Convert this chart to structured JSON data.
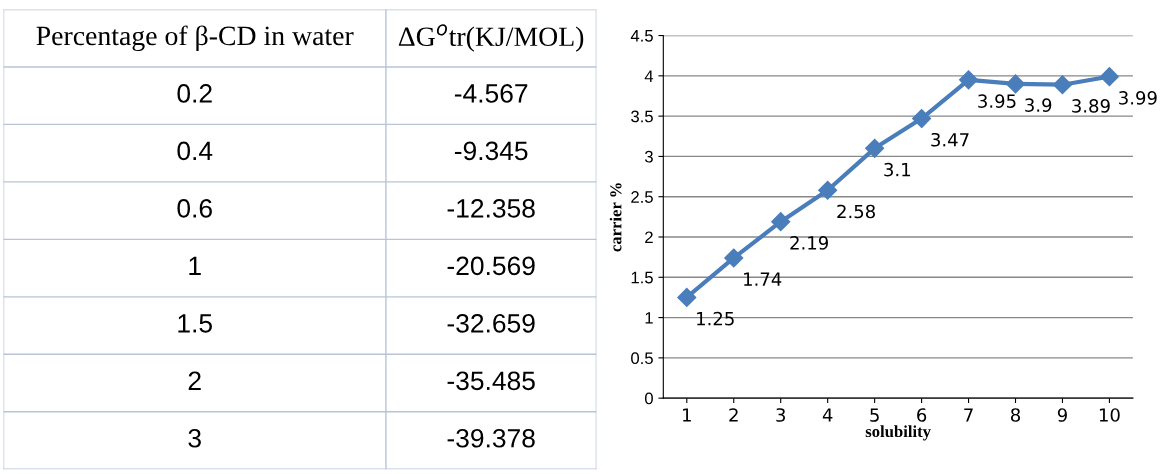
{
  "chart_data": [
    {
      "type": "other",
      "annotations": [
        "Percentage of β-CD in water",
        "ΔG$^{o}$tr(KJ/MOL)",
        "0.2",
        "-4.567",
        "0.4",
        "-9.345",
        "0.6",
        "-12.358",
        "1",
        "-20.569",
        "1.5",
        "-32.659",
        "2",
        "-35.485",
        "3",
        "-39.378"
      ]
    },
    {
      "type": "line",
      "xlabel": "solubility",
      "ylabel": "carrier %",
      "categories": [
        "1",
        "2",
        "3",
        "4",
        "5",
        "6",
        "7",
        "8",
        "9",
        "10"
      ],
      "series": [
        {
          "color": "#4a7ebb",
          "values": [
            1.25,
            1.74,
            2.19,
            2.58,
            3.1,
            3.47,
            3.95,
            3.9,
            3.89,
            3.99
          ]
        }
      ],
      "ylim": [
        0,
        4.5
      ],
      "yticks": [
        0,
        0.5,
        1,
        1.5,
        2,
        2.5,
        3,
        3.5,
        4,
        4.5
      ],
      "grid": "y",
      "marker": "diamond",
      "line_style": "solid",
      "data_labels": true
    }
  ]
}
